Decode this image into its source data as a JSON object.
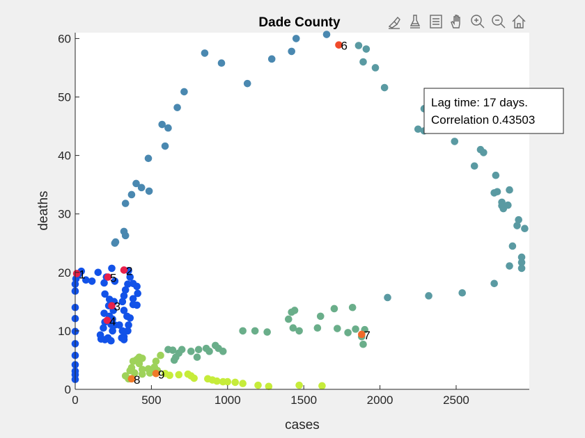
{
  "chart_data": {
    "type": "scatter",
    "title": "Dade County",
    "xlabel": "cases",
    "ylabel": "deaths",
    "xlim": [
      0,
      2980
    ],
    "ylim": [
      0,
      61
    ],
    "xticks": [
      0,
      500,
      1000,
      1500,
      2000,
      2500
    ],
    "yticks": [
      0,
      10,
      20,
      30,
      40,
      50,
      60
    ],
    "grid": false,
    "annotation": {
      "line1": "Lag time: 17 days.",
      "line2": "Correlation 0.43503",
      "placement": "right"
    },
    "series": [
      {
        "color": "#1252e8",
        "points": [
          [
            0,
            1.7
          ],
          [
            0,
            2.5
          ],
          [
            0,
            3.1
          ],
          [
            0,
            4.2
          ],
          [
            0,
            5.8
          ],
          [
            0,
            7.8
          ],
          [
            0,
            9.9
          ],
          [
            0,
            12.1
          ],
          [
            0,
            14
          ],
          [
            0,
            16.8
          ],
          [
            0,
            18
          ],
          [
            5,
            18.9
          ],
          [
            20,
            19.6
          ],
          [
            40,
            20.2
          ],
          [
            70,
            18.7
          ],
          [
            110,
            18.5
          ],
          [
            150,
            20
          ],
          [
            190,
            18.2
          ],
          [
            205,
            19.2
          ],
          [
            195,
            16.3
          ],
          [
            190,
            13
          ],
          [
            195,
            11.5
          ],
          [
            185,
            10.5
          ],
          [
            165,
            9.3
          ],
          [
            170,
            8.6
          ],
          [
            195,
            8.5
          ],
          [
            215,
            8.8
          ],
          [
            235,
            8.3
          ],
          [
            245,
            10
          ],
          [
            235,
            11.1
          ],
          [
            225,
            12.5
          ],
          [
            220,
            14.3
          ],
          [
            225,
            15.4
          ],
          [
            255,
            15
          ],
          [
            250,
            13.5
          ],
          [
            245,
            12
          ],
          [
            260,
            11
          ],
          [
            290,
            11
          ],
          [
            310,
            10
          ],
          [
            320,
            9
          ],
          [
            305,
            8.8
          ],
          [
            320,
            8.5
          ],
          [
            345,
            10
          ],
          [
            350,
            11
          ],
          [
            360,
            12.2
          ],
          [
            340,
            12.5
          ],
          [
            320,
            13.5
          ],
          [
            310,
            15
          ],
          [
            320,
            16
          ],
          [
            330,
            17
          ],
          [
            345,
            18
          ],
          [
            360,
            19.2
          ],
          [
            350,
            20.3
          ],
          [
            380,
            18.1
          ],
          [
            405,
            17.6
          ],
          [
            410,
            16.4
          ],
          [
            380,
            15.5
          ],
          [
            405,
            14.4
          ],
          [
            380,
            14.5
          ],
          [
            260,
            18.5
          ],
          [
            240,
            20.7
          ]
        ]
      },
      {
        "color": "#4a88b0",
        "points": [
          [
            260,
            25
          ],
          [
            265,
            25.2
          ],
          [
            330,
            26.3
          ],
          [
            320,
            27
          ],
          [
            330,
            31.8
          ],
          [
            370,
            33.3
          ],
          [
            400,
            35.2
          ],
          [
            435,
            34.5
          ],
          [
            485,
            33.9
          ],
          [
            480,
            39.5
          ],
          [
            590,
            41.6
          ],
          [
            570,
            45.3
          ],
          [
            610,
            44.7
          ],
          [
            670,
            48.2
          ],
          [
            715,
            50.9
          ],
          [
            850,
            57.5
          ],
          [
            960,
            55.8
          ],
          [
            1130,
            52.3
          ],
          [
            1290,
            56.5
          ],
          [
            1420,
            57.8
          ],
          [
            1450,
            60
          ],
          [
            1650,
            60.7
          ]
        ]
      },
      {
        "color": "#5a9aa2",
        "points": [
          [
            1860,
            58.8
          ],
          [
            1890,
            56
          ],
          [
            1910,
            58.2
          ],
          [
            1970,
            55
          ],
          [
            2030,
            51.6
          ],
          [
            2290,
            48
          ],
          [
            2250,
            44.5
          ],
          [
            2290,
            44.2
          ],
          [
            2320,
            44.5
          ],
          [
            2490,
            42.4
          ],
          [
            2620,
            38.2
          ],
          [
            2660,
            41
          ],
          [
            2680,
            40.5
          ],
          [
            2760,
            36.6
          ],
          [
            2750,
            33.6
          ],
          [
            2770,
            33.8
          ],
          [
            2800,
            32
          ],
          [
            2810,
            30.9
          ],
          [
            2800,
            31.4
          ],
          [
            2840,
            31.5
          ],
          [
            2850,
            34.1
          ],
          [
            2870,
            24.5
          ],
          [
            2910,
            29
          ],
          [
            2900,
            28
          ],
          [
            2950,
            27.5
          ],
          [
            2930,
            22.6
          ],
          [
            2930,
            21.7
          ],
          [
            2930,
            20.7
          ],
          [
            2850,
            21.1
          ],
          [
            2750,
            18.1
          ],
          [
            2540,
            16.5
          ],
          [
            2320,
            16
          ],
          [
            2050,
            15.7
          ]
        ]
      },
      {
        "color": "#6aae8a",
        "points": [
          [
            1900,
            10.2
          ],
          [
            1880,
            9
          ],
          [
            1890,
            7.7
          ],
          [
            1840,
            10.3
          ],
          [
            1820,
            14
          ],
          [
            1790,
            9.7
          ],
          [
            1720,
            10.4
          ],
          [
            1700,
            13.8
          ],
          [
            1610,
            12.5
          ],
          [
            1590,
            10.5
          ],
          [
            1470,
            10
          ],
          [
            1430,
            10.5
          ],
          [
            1400,
            12
          ],
          [
            1420,
            13.2
          ],
          [
            1440,
            13.5
          ],
          [
            1260,
            9.8
          ],
          [
            1180,
            10
          ],
          [
            1100,
            10
          ],
          [
            970,
            6.5
          ],
          [
            940,
            7
          ],
          [
            920,
            7.5
          ],
          [
            880,
            6.5
          ],
          [
            860,
            7
          ],
          [
            800,
            5.5
          ],
          [
            810,
            6.8
          ],
          [
            760,
            6.5
          ],
          [
            700,
            6.8
          ],
          [
            680,
            6.2
          ],
          [
            660,
            5.5
          ],
          [
            650,
            5
          ],
          [
            640,
            6.7
          ],
          [
            610,
            6.8
          ]
        ]
      },
      {
        "color": "#9ed25a",
        "points": [
          [
            560,
            5.8
          ],
          [
            530,
            4.8
          ],
          [
            520,
            3.8
          ],
          [
            480,
            3.5
          ],
          [
            440,
            3.4
          ],
          [
            420,
            4.4
          ],
          [
            410,
            5.2
          ],
          [
            440,
            5.3
          ],
          [
            420,
            5.5
          ],
          [
            400,
            5
          ],
          [
            380,
            4.8
          ],
          [
            370,
            3.7
          ],
          [
            360,
            3.2
          ],
          [
            330,
            2.3
          ],
          [
            350,
            1.8
          ],
          [
            390,
            2.8
          ],
          [
            440,
            2.6
          ],
          [
            490,
            2.8
          ],
          [
            510,
            3
          ],
          [
            540,
            3.2
          ]
        ]
      },
      {
        "color": "#c6ec3a",
        "points": [
          [
            590,
            2.7
          ],
          [
            620,
            2.4
          ],
          [
            680,
            2.5
          ],
          [
            740,
            2.6
          ],
          [
            760,
            2.3
          ],
          [
            780,
            1.9
          ],
          [
            870,
            1.8
          ],
          [
            900,
            1.6
          ],
          [
            930,
            1.4
          ],
          [
            970,
            1.3
          ],
          [
            1000,
            1.3
          ],
          [
            1050,
            1.2
          ],
          [
            1100,
            1
          ],
          [
            1200,
            0.7
          ],
          [
            1270,
            0.5
          ],
          [
            1470,
            0.7
          ],
          [
            1620,
            0.6
          ]
        ]
      }
    ],
    "markers": [
      {
        "label": "1",
        "x": 10,
        "y": 19.8,
        "color": "#e8204a"
      },
      {
        "label": "2",
        "x": 320,
        "y": 20.4,
        "color": "#e8204a"
      },
      {
        "label": "3",
        "x": 240,
        "y": 14.3,
        "color": "#e8204a"
      },
      {
        "label": "4",
        "x": 210,
        "y": 11.8,
        "color": "#e8204a"
      },
      {
        "label": "5",
        "x": 215,
        "y": 19.2,
        "color": "#e8204a"
      },
      {
        "label": "6",
        "x": 1730,
        "y": 58.9,
        "color": "#f04a2a"
      },
      {
        "label": "7",
        "x": 1880,
        "y": 9.4,
        "color": "#f06a2a"
      },
      {
        "label": "8",
        "x": 370,
        "y": 1.8,
        "color": "#f07a2a"
      },
      {
        "label": "9",
        "x": 530,
        "y": 2.7,
        "color": "#f07a2a"
      }
    ]
  },
  "toolbar": {
    "icons": [
      "brush-select-icon",
      "data-cursor-icon",
      "legend-icon",
      "pan-icon",
      "zoom-in-icon",
      "zoom-out-icon",
      "home-icon"
    ]
  }
}
